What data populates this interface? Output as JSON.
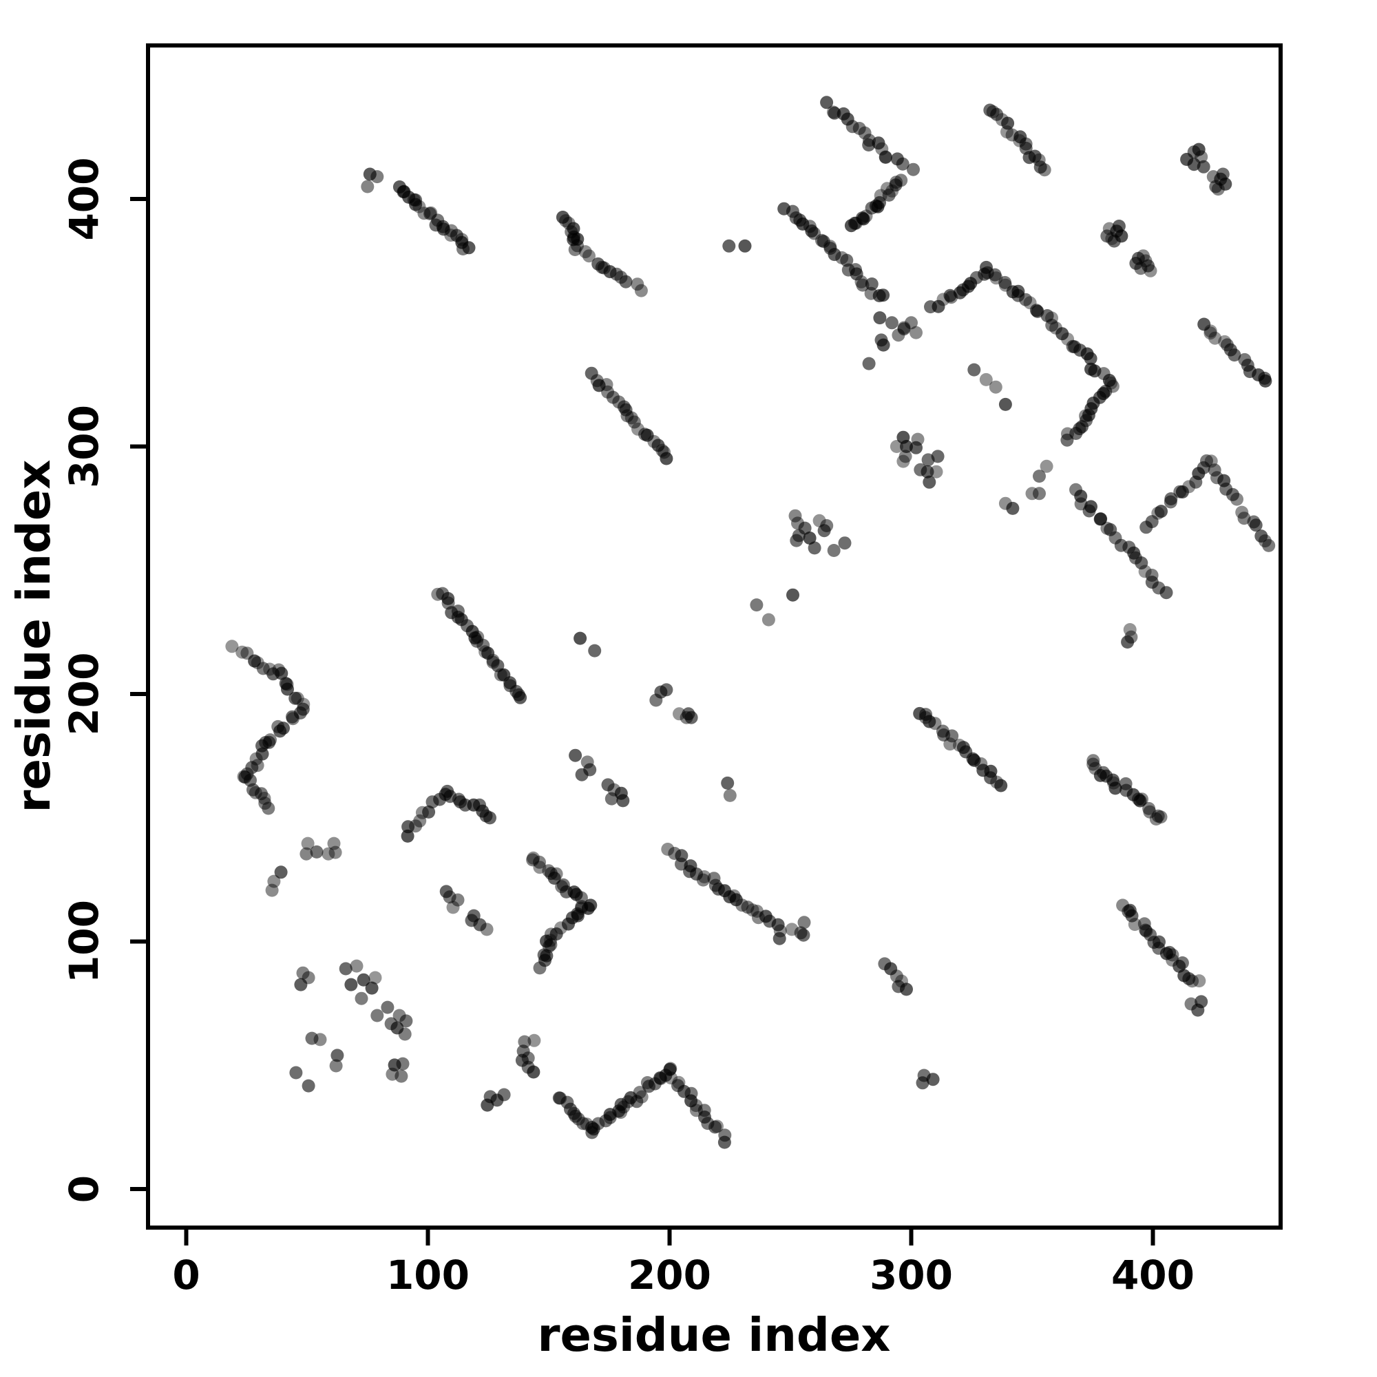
{
  "chart_data": {
    "type": "scatter",
    "title": "",
    "xlabel": "residue index",
    "ylabel": "residue index",
    "x_ticks": [
      0,
      100,
      200,
      300,
      400
    ],
    "y_ticks": [
      0,
      100,
      200,
      300,
      400
    ],
    "xlim": [
      -16,
      453
    ],
    "ylim": [
      -16,
      462
    ],
    "grid": false,
    "legend": "none",
    "point_color": "#000000",
    "point_base_opacity": 0.55,
    "point_radius_px": 9.5,
    "description": "protein residue-residue contact map, dense anti/parallel contact streaks of overlapping gray dots",
    "segments": [
      {
        "x1": 88,
        "y1": 405,
        "x2": 117,
        "y2": 380,
        "n": 22
      },
      {
        "x1": 157,
        "y1": 392,
        "x2": 162,
        "y2": 381,
        "n": 9
      },
      {
        "x1": 162,
        "y1": 379,
        "x2": 188,
        "y2": 363,
        "n": 12
      },
      {
        "x1": 169,
        "y1": 329,
        "x2": 199,
        "y2": 295,
        "n": 20
      },
      {
        "x1": 265,
        "y1": 438,
        "x2": 290,
        "y2": 418,
        "n": 13
      },
      {
        "x1": 290,
        "y1": 417,
        "x2": 301,
        "y2": 412,
        "n": 4
      },
      {
        "x1": 296,
        "y1": 408,
        "x2": 276,
        "y2": 388,
        "n": 17
      },
      {
        "x1": 248,
        "y1": 396,
        "x2": 288,
        "y2": 360,
        "n": 24
      },
      {
        "x1": 333,
        "y1": 437,
        "x2": 356,
        "y2": 411,
        "n": 16
      },
      {
        "x1": 309,
        "y1": 356,
        "x2": 332,
        "y2": 371,
        "n": 12
      },
      {
        "x1": 332,
        "y1": 371,
        "x2": 357,
        "y2": 352,
        "n": 14
      },
      {
        "x1": 358,
        "y1": 349,
        "x2": 383,
        "y2": 325,
        "n": 14
      },
      {
        "x1": 383,
        "y1": 325,
        "x2": 372,
        "y2": 311,
        "n": 8
      },
      {
        "x1": 372,
        "y1": 311,
        "x2": 364,
        "y2": 302,
        "n": 6
      },
      {
        "x1": 421,
        "y1": 349,
        "x2": 447,
        "y2": 326,
        "n": 14
      },
      {
        "x1": 367,
        "y1": 282,
        "x2": 405,
        "y2": 242,
        "n": 20
      },
      {
        "x1": 398,
        "y1": 268,
        "x2": 423,
        "y2": 293,
        "n": 13
      },
      {
        "x1": 423,
        "y1": 293,
        "x2": 449,
        "y2": 259,
        "n": 14
      },
      {
        "x1": 20,
        "y1": 218,
        "x2": 37,
        "y2": 209,
        "n": 8
      },
      {
        "x1": 37,
        "y1": 209,
        "x2": 48,
        "y2": 195,
        "n": 8
      },
      {
        "x1": 48,
        "y1": 195,
        "x2": 34,
        "y2": 180,
        "n": 9
      },
      {
        "x1": 34,
        "y1": 180,
        "x2": 24,
        "y2": 166,
        "n": 8
      },
      {
        "x1": 24,
        "y1": 166,
        "x2": 34,
        "y2": 153,
        "n": 8
      },
      {
        "x1": 91,
        "y1": 143,
        "x2": 107,
        "y2": 160,
        "n": 9
      },
      {
        "x1": 107,
        "y1": 160,
        "x2": 127,
        "y2": 151,
        "n": 10
      },
      {
        "x1": 105,
        "y1": 241,
        "x2": 139,
        "y2": 198,
        "n": 26
      },
      {
        "x1": 143,
        "y1": 134,
        "x2": 166,
        "y2": 114,
        "n": 16
      },
      {
        "x1": 166,
        "y1": 114,
        "x2": 150,
        "y2": 101,
        "n": 10
      },
      {
        "x1": 150,
        "y1": 101,
        "x2": 147,
        "y2": 90,
        "n": 7
      },
      {
        "x1": 200,
        "y1": 136,
        "x2": 240,
        "y2": 109,
        "n": 22
      },
      {
        "x1": 154,
        "y1": 37,
        "x2": 168,
        "y2": 24,
        "n": 10
      },
      {
        "x1": 168,
        "y1": 24,
        "x2": 181,
        "y2": 33,
        "n": 9
      },
      {
        "x1": 181,
        "y1": 33,
        "x2": 200,
        "y2": 48,
        "n": 13
      },
      {
        "x1": 200,
        "y1": 48,
        "x2": 223,
        "y2": 20,
        "n": 16
      },
      {
        "x1": 303,
        "y1": 193,
        "x2": 337,
        "y2": 164,
        "n": 20
      },
      {
        "x1": 374,
        "y1": 173,
        "x2": 385,
        "y2": 163,
        "n": 9
      },
      {
        "x1": 388,
        "y1": 163,
        "x2": 404,
        "y2": 149,
        "n": 11
      },
      {
        "x1": 388,
        "y1": 114,
        "x2": 418,
        "y2": 83,
        "n": 22
      }
    ],
    "points": [
      [
        76,
        410
      ],
      [
        79,
        409
      ],
      [
        75,
        405
      ],
      [
        224.6,
        381
      ],
      [
        231.2,
        381
      ],
      [
        417,
        419
      ],
      [
        414,
        416
      ],
      [
        420,
        417
      ],
      [
        417,
        414
      ],
      [
        419,
        420
      ],
      [
        421,
        413
      ],
      [
        425,
        409
      ],
      [
        428,
        408
      ],
      [
        430,
        406
      ],
      [
        426,
        405
      ],
      [
        429,
        410
      ],
      [
        427,
        404
      ],
      [
        382,
        388
      ],
      [
        385,
        387
      ],
      [
        387,
        385
      ],
      [
        383,
        384
      ],
      [
        386,
        389
      ],
      [
        384,
        383
      ],
      [
        381,
        385
      ],
      [
        394,
        376
      ],
      [
        397,
        375
      ],
      [
        398,
        373
      ],
      [
        395,
        372
      ],
      [
        393,
        374
      ],
      [
        396,
        377
      ],
      [
        399,
        371
      ],
      [
        356,
        292
      ],
      [
        353,
        288
      ],
      [
        350,
        281
      ],
      [
        353,
        281
      ],
      [
        342,
        275
      ],
      [
        339,
        277
      ],
      [
        326,
        331
      ],
      [
        331,
        327
      ],
      [
        335,
        324
      ],
      [
        339,
        317
      ],
      [
        390.5,
        226
      ],
      [
        389.5,
        221
      ],
      [
        391,
        223
      ],
      [
        252,
        272
      ],
      [
        253,
        269
      ],
      [
        253.5,
        264
      ],
      [
        252.5,
        262
      ],
      [
        258,
        263
      ],
      [
        260,
        259
      ],
      [
        264,
        266
      ],
      [
        265,
        268
      ],
      [
        272.5,
        261
      ],
      [
        268,
        258
      ],
      [
        262,
        270
      ],
      [
        256,
        267
      ],
      [
        296.7,
        303.7
      ],
      [
        302.7,
        302.9
      ],
      [
        294,
        300
      ],
      [
        298,
        300
      ],
      [
        302,
        299.5
      ],
      [
        297.6,
        296
      ],
      [
        296.7,
        294
      ],
      [
        307,
        294.6
      ],
      [
        311,
        296
      ],
      [
        303.8,
        290.6
      ],
      [
        306.7,
        289.8
      ],
      [
        310.4,
        289.8
      ],
      [
        307.5,
        285.6
      ],
      [
        236,
        236
      ],
      [
        241,
        230
      ],
      [
        251,
        240
      ],
      [
        163,
        222.5
      ],
      [
        169,
        217.5
      ],
      [
        196.4,
        200.8
      ],
      [
        198.7,
        201.7
      ],
      [
        194.4,
        197.5
      ],
      [
        204,
        192
      ],
      [
        207,
        190.5
      ],
      [
        161,
        175.2
      ],
      [
        166,
        172.5
      ],
      [
        167,
        169.4
      ],
      [
        163.7,
        167.4
      ],
      [
        174.5,
        163.3
      ],
      [
        177,
        161.3
      ],
      [
        180,
        159.9
      ],
      [
        176,
        157.7
      ],
      [
        180.7,
        156.9
      ],
      [
        224,
        164
      ],
      [
        225,
        159
      ],
      [
        287,
        352
      ],
      [
        292,
        350
      ],
      [
        297,
        348
      ],
      [
        302,
        346
      ],
      [
        287.6,
        343
      ],
      [
        288.5,
        341
      ],
      [
        294.7,
        345
      ],
      [
        297,
        347.5
      ],
      [
        300,
        350
      ],
      [
        282.5,
        333.5
      ],
      [
        50.3,
        139.6
      ],
      [
        49.7,
        135.4
      ],
      [
        54,
        136.2
      ],
      [
        58.8,
        135.4
      ],
      [
        61.1,
        139.6
      ],
      [
        61.7,
        136
      ],
      [
        39.2,
        128
      ],
      [
        36.3,
        124.3
      ],
      [
        35.5,
        120.7
      ],
      [
        107.6,
        120.2
      ],
      [
        109,
        118
      ],
      [
        112.4,
        116.8
      ],
      [
        110.4,
        113.8
      ],
      [
        118.1,
        108.5
      ],
      [
        119,
        110.4
      ],
      [
        121.5,
        106.8
      ],
      [
        124.4,
        104.9
      ],
      [
        241.4,
        108.2
      ],
      [
        244.9,
        106.8
      ],
      [
        245.8,
        104.3
      ],
      [
        245.5,
        101.2
      ],
      [
        250.6,
        104.9
      ],
      [
        254.3,
        103.5
      ],
      [
        255.7,
        107.7
      ],
      [
        255.4,
        102.6
      ],
      [
        140,
        59.5
      ],
      [
        144,
        60
      ],
      [
        139.5,
        55.7
      ],
      [
        141.5,
        52.9
      ],
      [
        139,
        52
      ],
      [
        141.5,
        49.2
      ],
      [
        143.7,
        47.3
      ],
      [
        125.8,
        37.3
      ],
      [
        128.6,
        35.9
      ],
      [
        131.5,
        38.1
      ],
      [
        124.6,
        33.9
      ],
      [
        66,
        89
      ],
      [
        70.5,
        90.1
      ],
      [
        68.2,
        82.6
      ],
      [
        73.4,
        84.5
      ],
      [
        78.2,
        85.4
      ],
      [
        72.5,
        77
      ],
      [
        76.8,
        81.2
      ],
      [
        79,
        70.1
      ],
      [
        83.3,
        73.4
      ],
      [
        84.8,
        66.8
      ],
      [
        88.2,
        70.1
      ],
      [
        91,
        67.9
      ],
      [
        90.5,
        62.6
      ],
      [
        87.3,
        65.1
      ],
      [
        48.3,
        87.3
      ],
      [
        50.6,
        85.4
      ],
      [
        47.4,
        82.6
      ],
      [
        52,
        60.9
      ],
      [
        55.4,
        60.4
      ],
      [
        62.5,
        54
      ],
      [
        62,
        49.8
      ],
      [
        50.6,
        41.7
      ],
      [
        45.4,
        47
      ],
      [
        86.2,
        50.1
      ],
      [
        89.6,
        50.6
      ],
      [
        85.3,
        46.4
      ],
      [
        89,
        45.6
      ],
      [
        415.8,
        74.8
      ],
      [
        420,
        75.7
      ],
      [
        418.6,
        72.3
      ],
      [
        289,
        91
      ],
      [
        291.5,
        89
      ],
      [
        294,
        86
      ],
      [
        296,
        84
      ],
      [
        294.7,
        81.8
      ],
      [
        298,
        80.7
      ],
      [
        305.3,
        45.9
      ],
      [
        304.7,
        42.9
      ],
      [
        309,
        44.3
      ],
      [
        207.8,
        192
      ],
      [
        209,
        190.5
      ]
    ]
  }
}
